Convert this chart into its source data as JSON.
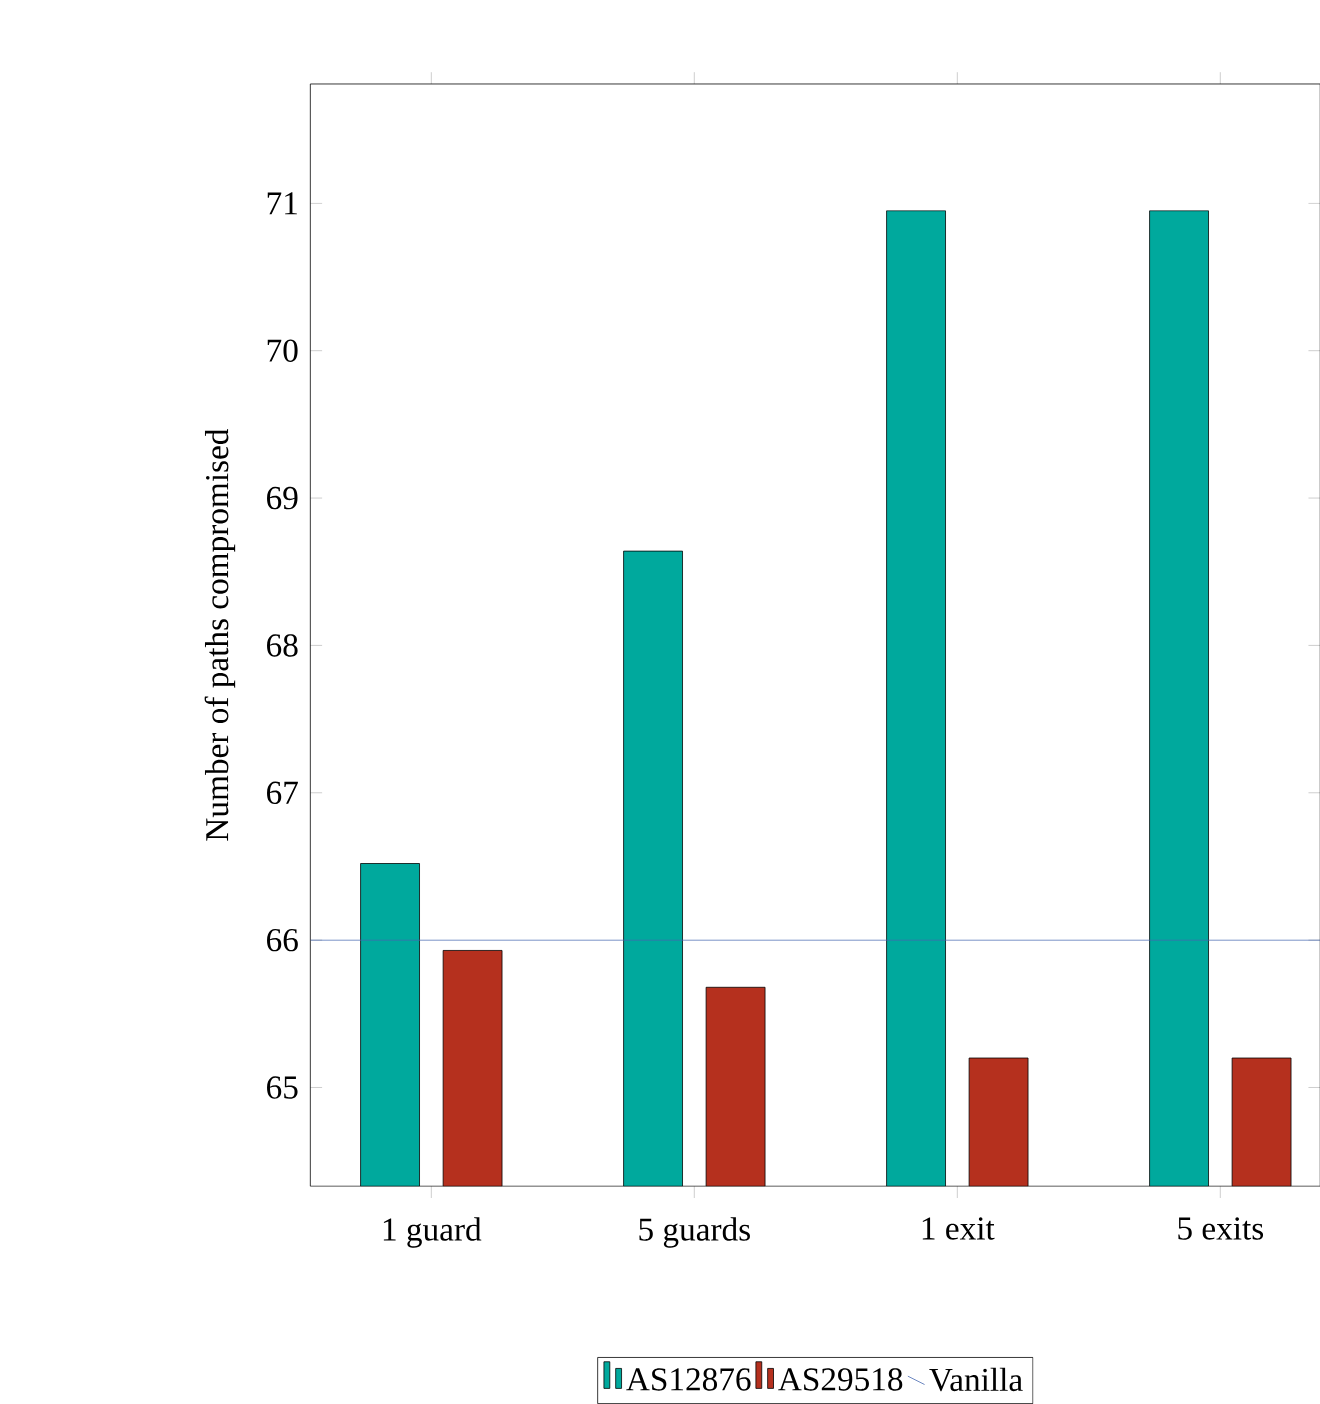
{
  "chart_data": {
    "type": "bar",
    "ylabel": "Number of paths compromised",
    "categories": [
      "1 guard",
      "5 guards",
      "1 exit",
      "5 exits"
    ],
    "series": [
      {
        "name": "AS12876",
        "color": "#00a99d",
        "values": [
          66.52,
          68.64,
          70.95,
          70.95
        ]
      },
      {
        "name": "AS29518",
        "color": "#b5301e",
        "values": [
          65.93,
          65.68,
          65.2,
          65.2
        ]
      }
    ],
    "ref_lines": [
      {
        "axis": "y",
        "value": 66,
        "label": "Vanilla",
        "color": "#4466b0"
      }
    ],
    "ylim": [
      64.33,
      71.81
    ],
    "yticks": [
      65,
      66,
      67,
      68,
      69,
      70,
      71
    ],
    "legend": "bottom",
    "grid": false
  }
}
